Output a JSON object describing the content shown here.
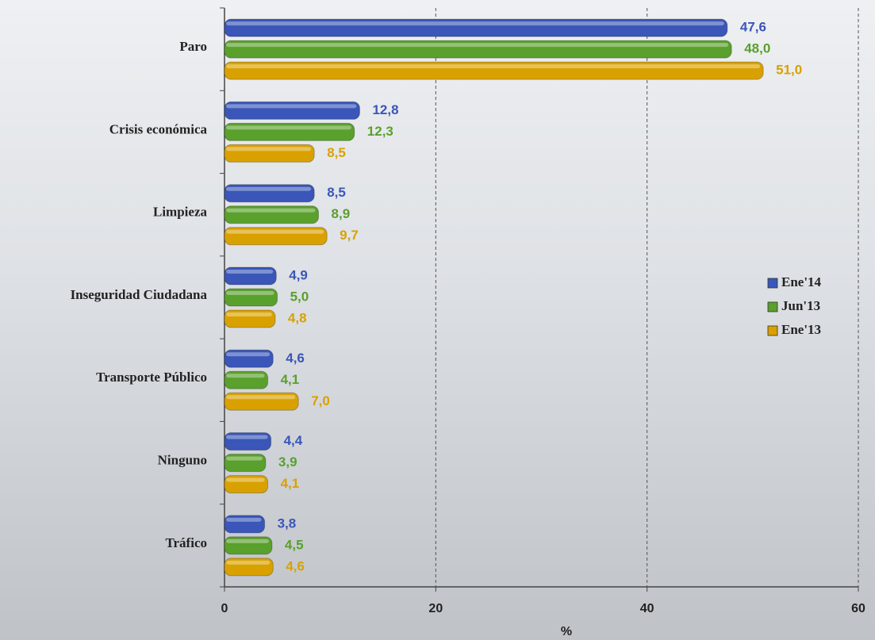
{
  "chart_data": {
    "type": "bar",
    "orientation": "horizontal",
    "categories": [
      "Paro",
      "Crisis económica",
      "Limpieza",
      "Inseguridad Ciudadana",
      "Transporte Público",
      "Ninguno",
      "Tráfico"
    ],
    "series": [
      {
        "name": "Ene'14",
        "color": "#3a56b8",
        "values": [
          47.6,
          12.8,
          8.5,
          4.9,
          4.6,
          4.4,
          3.8
        ],
        "value_labels": [
          "47,6",
          "12,8",
          "8,5",
          "4,9",
          "4,6",
          "4,4",
          "3,8"
        ]
      },
      {
        "name": "Jun'13",
        "color": "#5aa02c",
        "values": [
          48.0,
          12.3,
          8.9,
          5.0,
          4.1,
          3.9,
          4.5
        ],
        "value_labels": [
          "48,0",
          "12,3",
          "8,9",
          "5,0",
          "4,1",
          "3,9",
          "4,5"
        ]
      },
      {
        "name": "Ene'13",
        "color": "#d9a100",
        "values": [
          51.0,
          8.5,
          9.7,
          4.8,
          7.0,
          4.1,
          4.6
        ],
        "value_labels": [
          "51,0",
          "8,5",
          "9,7",
          "4,8",
          "7,0",
          "4,1",
          "4,6"
        ]
      }
    ],
    "xlabel": "%",
    "xlim": [
      0,
      60
    ],
    "xticks": [
      0,
      20,
      40,
      60
    ],
    "grid": true,
    "legend": "right"
  }
}
